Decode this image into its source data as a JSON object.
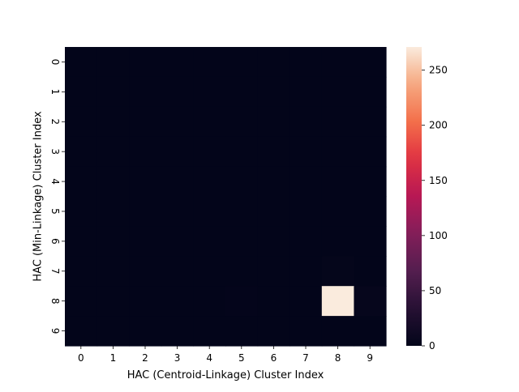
{
  "chart_data": {
    "type": "heatmap",
    "title": "",
    "xlabel": "HAC (Centroid-Linkage) Cluster Index",
    "ylabel": "HAC (Min-Linkage) Cluster Index",
    "x_categories": [
      "0",
      "1",
      "2",
      "3",
      "4",
      "5",
      "6",
      "7",
      "8",
      "9"
    ],
    "y_categories": [
      "0",
      "1",
      "2",
      "3",
      "4",
      "5",
      "6",
      "7",
      "8",
      "9"
    ],
    "values": [
      [
        0,
        0,
        0,
        0,
        0,
        0,
        0,
        0,
        0,
        0
      ],
      [
        0,
        0,
        0,
        0,
        0,
        0,
        0,
        0,
        0,
        0
      ],
      [
        0,
        0,
        0,
        0,
        0,
        0,
        0,
        0,
        0,
        0
      ],
      [
        0,
        0,
        0,
        0,
        0,
        0,
        0,
        0,
        0,
        0
      ],
      [
        0,
        0,
        0,
        0,
        0,
        0,
        0,
        0,
        0,
        0
      ],
      [
        0,
        0,
        0,
        0,
        0,
        0,
        0,
        0,
        0,
        0
      ],
      [
        0,
        0,
        0,
        0,
        0,
        0,
        0,
        0,
        0,
        0
      ],
      [
        0,
        0,
        0,
        0,
        0,
        0,
        0,
        0,
        2,
        0
      ],
      [
        0,
        0,
        0,
        0,
        0,
        1,
        0,
        0,
        271,
        3
      ],
      [
        0,
        0,
        0,
        0,
        0,
        0,
        0,
        0,
        0,
        0
      ]
    ],
    "colorbar": {
      "min": 0,
      "max": 271,
      "ticks": [
        0,
        50,
        100,
        150,
        200,
        250
      ],
      "colormap": "rocket"
    },
    "grid": false
  }
}
